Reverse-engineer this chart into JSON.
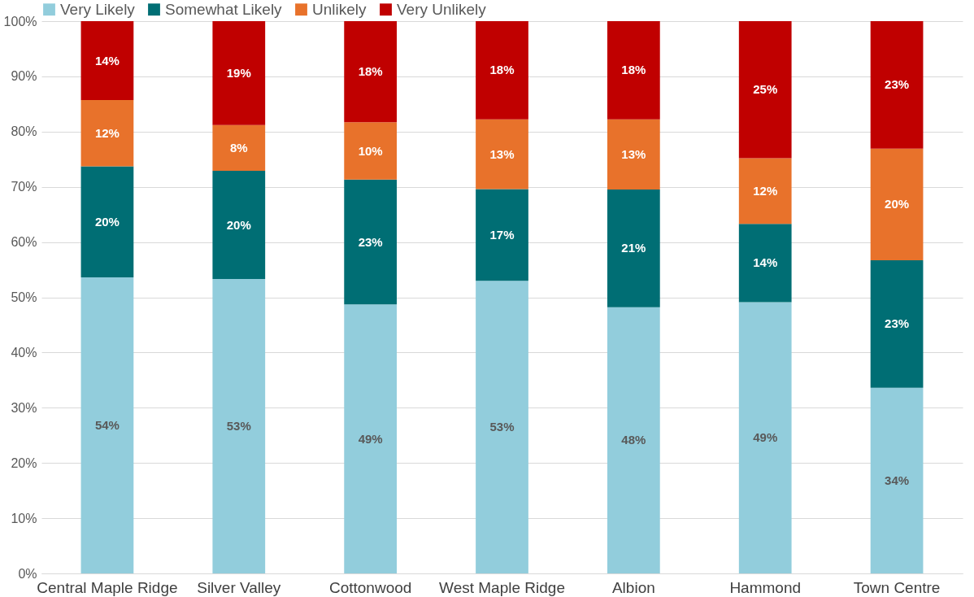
{
  "chart_data": {
    "type": "bar",
    "stacked": true,
    "categories": [
      "Central Maple Ridge",
      "Silver Valley",
      "Cottonwood",
      "West Maple Ridge",
      "Albion",
      "Hammond",
      "Town Centre"
    ],
    "series": [
      {
        "name": "Very Likely",
        "color": "#92cddc",
        "values": [
          53.6,
          53.3,
          48.7,
          53.0,
          48.2,
          49.1,
          33.6
        ],
        "value_labels": [
          "54%",
          "53%",
          "49%",
          "53%",
          "48%",
          "49%",
          "34%"
        ]
      },
      {
        "name": "Somewhat Likely",
        "color": "#006e74",
        "values": [
          20.1,
          19.6,
          22.6,
          16.6,
          21.3,
          14.2,
          23.1
        ],
        "value_labels": [
          "20%",
          "20%",
          "23%",
          "17%",
          "21%",
          "14%",
          "23%"
        ]
      },
      {
        "name": "Unlikely",
        "color": "#e8722b",
        "values": [
          12.0,
          8.3,
          10.4,
          12.6,
          12.7,
          11.9,
          20.2
        ],
        "value_labels": [
          "12%",
          "8%",
          "10%",
          "13%",
          "13%",
          "12%",
          "20%"
        ]
      },
      {
        "name": "Very Unlikely",
        "color": "#c00000",
        "values": [
          14.3,
          18.8,
          18.3,
          17.8,
          17.8,
          24.8,
          23.1
        ],
        "value_labels": [
          "14%",
          "19%",
          "18%",
          "18%",
          "18%",
          "25%",
          "23%"
        ]
      }
    ],
    "ylim": [
      0,
      100
    ],
    "yticks": [
      {
        "value": 0,
        "label": "0%"
      },
      {
        "value": 10,
        "label": "10%"
      },
      {
        "value": 20,
        "label": "20%"
      },
      {
        "value": 30,
        "label": "30%"
      },
      {
        "value": 40,
        "label": "40%"
      },
      {
        "value": 50,
        "label": "50%"
      },
      {
        "value": 60,
        "label": "60%"
      },
      {
        "value": 70,
        "label": "70%"
      },
      {
        "value": 80,
        "label": "80%"
      },
      {
        "value": 90,
        "label": "90%"
      },
      {
        "value": 100,
        "label": "100%"
      }
    ],
    "grid": "y",
    "legend": "top"
  }
}
